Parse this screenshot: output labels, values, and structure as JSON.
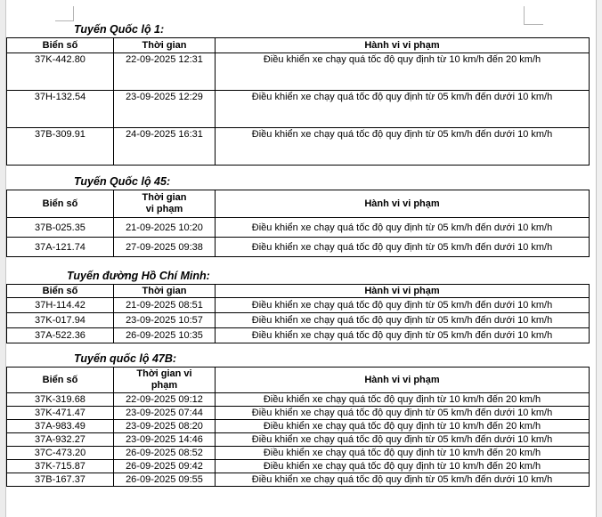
{
  "document": {
    "sections": [
      {
        "title": "Tuyến Quốc lộ 1:",
        "columns": [
          "Biển số",
          "Thời gian",
          "Hành vi vi phạm"
        ],
        "rows": [
          [
            "37K-442.80",
            "22-09-2025 12:31",
            "Điều khiển xe chạy quá tốc độ quy định từ 10 km/h đến 20 km/h"
          ],
          [
            "37H-132.54",
            "23-09-2025 12:29",
            "Điều khiển xe chạy quá tốc độ quy định từ 05 km/h đến dưới 10 km/h"
          ],
          [
            "37B-309.91",
            "24-09-2025 16:31",
            "Điều khiển xe chạy quá tốc độ quy định từ 05 km/h đến dưới 10 km/h"
          ]
        ]
      },
      {
        "title": "Tuyến Quốc lộ 45:",
        "columns": [
          "Biển số",
          "Thời gian\nvi phạm",
          "Hành vi vi phạm"
        ],
        "rows": [
          [
            "37B-025.35",
            "21-09-2025 10:20",
            "Điều khiển xe chạy quá tốc độ quy định từ 05 km/h đến dưới 10 km/h"
          ],
          [
            "37A-121.74",
            "27-09-2025 09:38",
            "Điều khiển xe chạy quá tốc độ quy định từ 05 km/h đến dưới 10 km/h"
          ]
        ]
      },
      {
        "title": "Tuyến đường Hồ Chí Minh:",
        "columns": [
          "Biển số",
          "Thời gian",
          "Hành vi vi phạm"
        ],
        "rows": [
          [
            "37H-114.42",
            "21-09-2025 08:51",
            "Điều khiển xe chạy quá tốc độ quy định từ 05 km/h đến dưới 10 km/h"
          ],
          [
            "37K-017.94",
            "23-09-2025 10:57",
            "Điều khiển xe chạy quá tốc độ quy định từ 05 km/h đến dưới 10 km/h"
          ],
          [
            "37A-522.36",
            "26-09-2025 10:35",
            "Điều khiển xe chạy quá tốc độ quy định từ 05 km/h đến dưới 10 km/h"
          ]
        ]
      },
      {
        "title": "Tuyến quốc lộ 47B:",
        "columns": [
          "Biển số",
          "Thời gian vi\nphạm",
          "Hành vi vi phạm"
        ],
        "rows": [
          [
            "37K-319.68",
            "22-09-2025 09:12",
            "Điều khiển xe chạy quá tốc độ quy định từ 10 km/h đến 20 km/h"
          ],
          [
            "37K-471.47",
            "23-09-2025 07:44",
            "Điều khiển xe chạy quá tốc độ quy định từ 05 km/h đến dưới 10 km/h"
          ],
          [
            "37A-983.49",
            "23-09-2025 08:20",
            "Điều khiển xe chạy quá tốc độ quy định từ 10 km/h đến 20 km/h"
          ],
          [
            "37A-932.27",
            "23-09-2025 14:46",
            "Điều khiển xe chạy quá tốc độ quy định từ 05 km/h đến dưới 10 km/h"
          ],
          [
            "37C-473.20",
            "26-09-2025 08:52",
            "Điều khiển xe chạy quá tốc độ quy định từ 10 km/h đến 20 km/h"
          ],
          [
            "37K-715.87",
            "26-09-2025 09:42",
            "Điều khiển xe chạy quá tốc độ quy định từ 10 km/h đến 20 km/h"
          ],
          [
            "37B-167.37",
            "26-09-2025 09:55",
            "Điều khiển xe chạy quá tốc độ quy định từ 05 km/h đến dưới 10 km/h"
          ]
        ]
      }
    ]
  },
  "colors": {
    "text": "#000000",
    "table_border": "#000000",
    "page_background": "#ffffff",
    "app_edge": "#ececec",
    "boundary_mark": "#b3b3b3"
  }
}
